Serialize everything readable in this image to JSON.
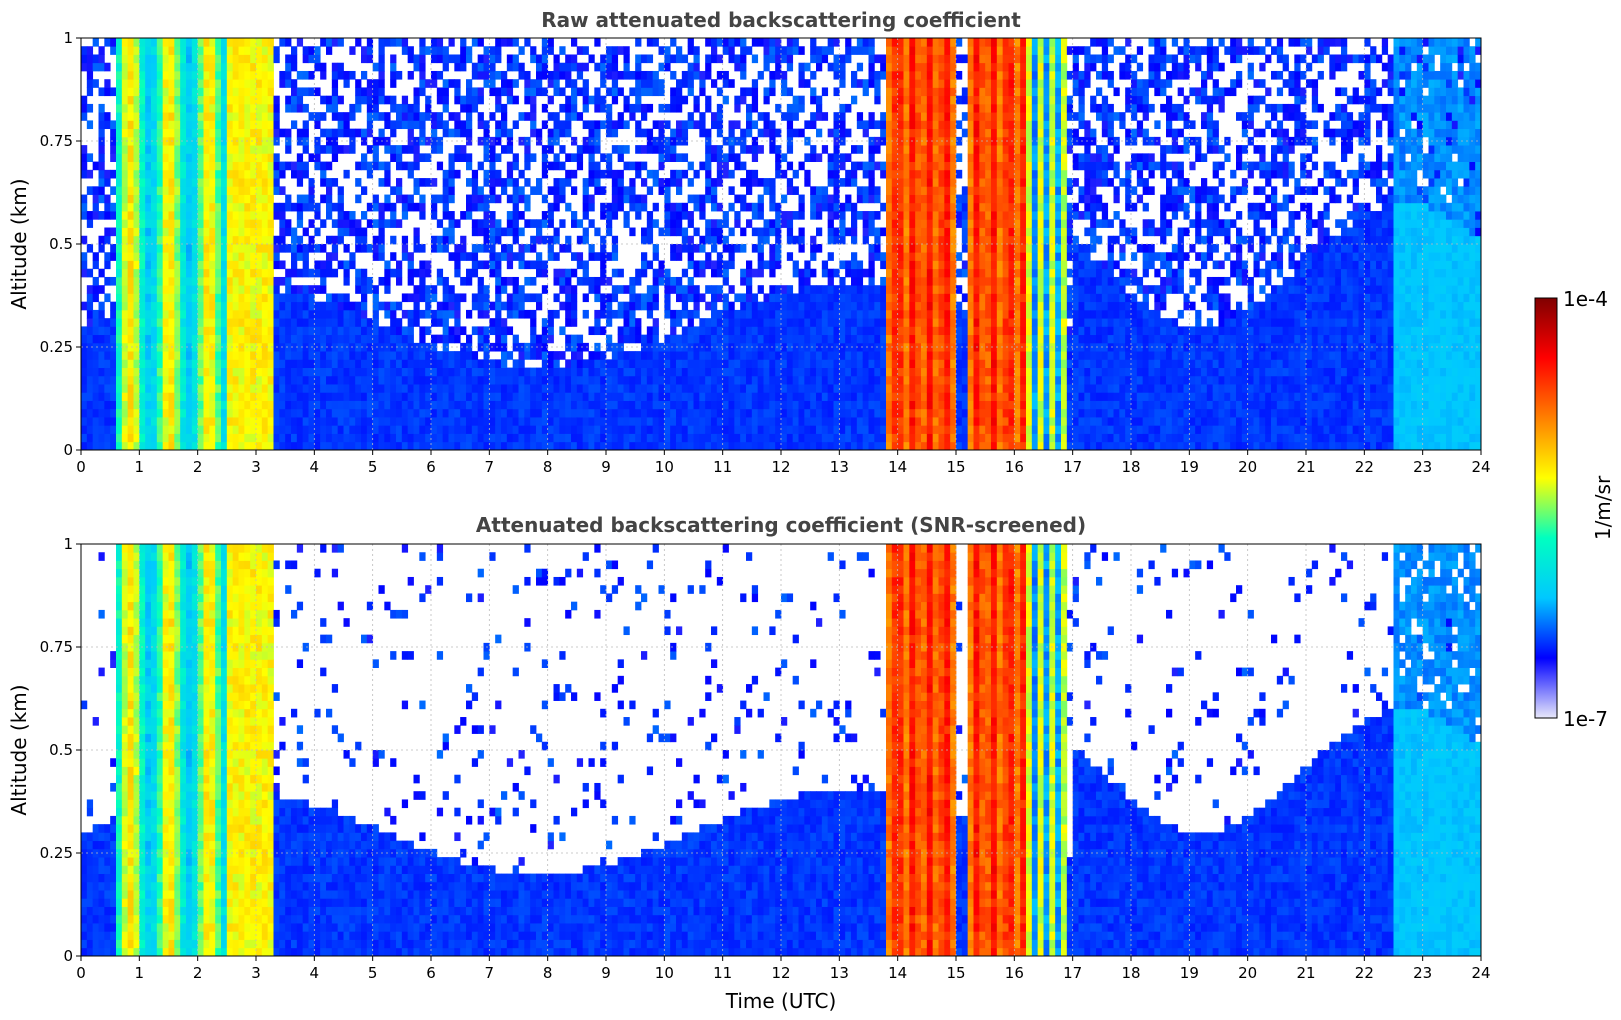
{
  "chart_data": [
    {
      "type": "heatmap",
      "title": "Raw attenuated backscattering coefficient",
      "xlabel": "",
      "ylabel": "Altitude (km)",
      "xlim": [
        0,
        24
      ],
      "ylim": [
        0,
        1
      ],
      "x_ticks": [
        "0",
        "1",
        "2",
        "3",
        "4",
        "5",
        "6",
        "7",
        "8",
        "9",
        "10",
        "11",
        "12",
        "13",
        "14",
        "15",
        "16",
        "17",
        "18",
        "19",
        "20",
        "21",
        "22",
        "23",
        "24"
      ],
      "y_ticks": [
        "0",
        "0.25",
        "0.5",
        "0.75",
        "1"
      ],
      "grid": true,
      "screened": false
    },
    {
      "type": "heatmap",
      "title": "Attenuated backscattering coefficient (SNR-screened)",
      "xlabel": "Time (UTC)",
      "ylabel": "Altitude (km)",
      "xlim": [
        0,
        24
      ],
      "ylim": [
        0,
        1
      ],
      "x_ticks": [
        "0",
        "1",
        "2",
        "3",
        "4",
        "5",
        "6",
        "7",
        "8",
        "9",
        "10",
        "11",
        "12",
        "13",
        "14",
        "15",
        "16",
        "17",
        "18",
        "19",
        "20",
        "21",
        "22",
        "23",
        "24"
      ],
      "y_ticks": [
        "0",
        "0.25",
        "0.5",
        "0.75",
        "1"
      ],
      "grid": true,
      "screened": true
    }
  ],
  "colorbar": {
    "label": "1/m/sr",
    "max_label": "1e-4",
    "min_label": "1e-7",
    "colormap": "jet-like",
    "colors": [
      "#e8e8fa",
      "#0000ff",
      "#00c8ff",
      "#00ffc0",
      "#ffff00",
      "#ff8000",
      "#ff0000",
      "#800000"
    ]
  }
}
